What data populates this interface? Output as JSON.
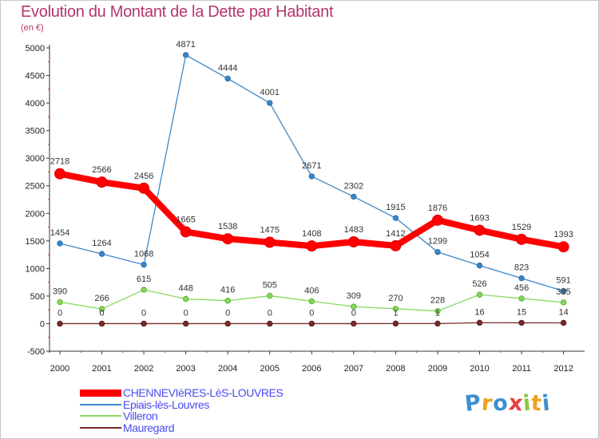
{
  "title": "Evolution du Montant de la Dette par Habitant",
  "subtitle": "(en €)",
  "logo_text": "Proxiti",
  "chart_data": {
    "type": "line",
    "title": "Evolution du Montant de la Dette par Habitant",
    "subtitle": "(en €)",
    "xlabel": "",
    "ylabel": "",
    "categories": [
      "2000",
      "2001",
      "2002",
      "2003",
      "2004",
      "2005",
      "2006",
      "2007",
      "2008",
      "2009",
      "2010",
      "2011",
      "2012"
    ],
    "ylim": [
      -500,
      5000
    ],
    "yticks": [
      -500,
      0,
      500,
      1000,
      1500,
      2000,
      2500,
      3000,
      3500,
      4000,
      4500,
      5000
    ],
    "grid": false,
    "legend_position": "bottom-left",
    "series": [
      {
        "name": "CHENNEVIèRES-LèS-LOUVRES",
        "color": "#ff0000",
        "values": [
          2718,
          2566,
          2456,
          1665,
          1538,
          1475,
          1408,
          1483,
          1412,
          1876,
          1693,
          1529,
          1393
        ],
        "labels": [
          "2718",
          "2566",
          "2456",
          "1665",
          "1538",
          "1475",
          "1408",
          "1483",
          "1412",
          "1876",
          "1693",
          "1529",
          "1393"
        ]
      },
      {
        "name": "Epiais-lès-Louvres",
        "color": "#3a87c8",
        "values": [
          1454,
          1264,
          1068,
          4871,
          4444,
          4001,
          2671,
          2302,
          1915,
          1299,
          1054,
          823,
          591
        ],
        "labels": [
          "1454",
          "1264",
          "1068",
          "4871",
          "4444",
          "4001",
          "2671",
          "2302",
          "1915",
          "1299",
          "1054",
          "823",
          "591"
        ]
      },
      {
        "name": "Villeron",
        "color": "#88d860",
        "values": [
          390,
          266,
          615,
          448,
          416,
          505,
          406,
          309,
          270,
          228,
          526,
          456,
          385
        ],
        "labels": [
          "390",
          "266",
          "615",
          "448",
          "416",
          "505",
          "406",
          "309",
          "270",
          "228",
          "526",
          "456",
          "385"
        ]
      },
      {
        "name": "Mauregard",
        "color": "#7a2a2a",
        "values": [
          0,
          0,
          0,
          0,
          0,
          0,
          0,
          0,
          1,
          1,
          16,
          15,
          14
        ],
        "labels": [
          "0",
          "0",
          "0",
          "0",
          "0",
          "0",
          "0",
          "0",
          "1",
          "1",
          "16",
          "15",
          "14"
        ]
      }
    ]
  }
}
